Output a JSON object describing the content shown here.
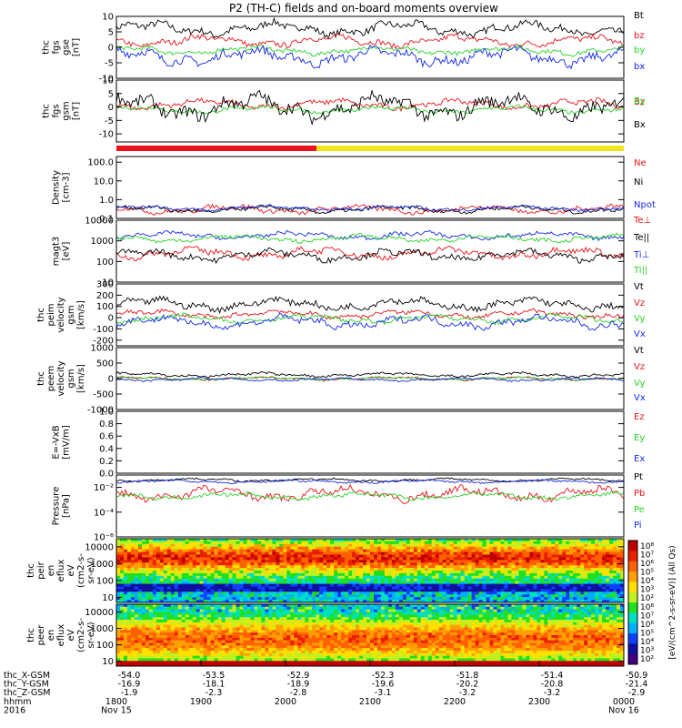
{
  "title": "P2 (TH-C) fields and on-board moments overview",
  "colors": {
    "black": "#000000",
    "red": "#e8141a",
    "green": "#28d228",
    "blue": "#1428e6",
    "orange_bar": "#f0e61e"
  },
  "chart_data": [
    {
      "type": "line",
      "id": "fgs_gse",
      "ylabel": [
        "thc",
        "fgs",
        "gse",
        "[nT]"
      ],
      "ylim": [
        -10,
        10
      ],
      "ticks": [
        {
          "v": 10,
          "l": "10"
        },
        {
          "v": 5,
          "l": "5"
        },
        {
          "v": 0,
          "l": "0"
        },
        {
          "v": -5,
          "l": "-5"
        },
        {
          "v": -10,
          "l": "-10"
        }
      ],
      "log": false,
      "series": [
        {
          "name": "Bt",
          "color": "#000000",
          "base": 6,
          "amp": 2.5
        },
        {
          "name": "bz",
          "color": "#e8141a",
          "base": 2,
          "amp": 2
        },
        {
          "name": "by",
          "color": "#28d228",
          "base": -1,
          "amp": 1.5
        },
        {
          "name": "bx",
          "color": "#1428e6",
          "base": -3,
          "amp": 3
        }
      ]
    },
    {
      "type": "line",
      "id": "fgs_gsm",
      "ylabel": [
        "thc",
        "fgs",
        "gsm",
        "[nT]"
      ],
      "ylim": [
        -13,
        10
      ],
      "ticks": [
        {
          "v": 10,
          "l": "10"
        },
        {
          "v": 5,
          "l": "5"
        },
        {
          "v": 0,
          "l": "0"
        },
        {
          "v": -5,
          "l": "-5"
        },
        {
          "v": -10,
          "l": "-10"
        }
      ],
      "log": false,
      "series": [
        {
          "name": "Bz",
          "color": "#e8141a",
          "base": 1,
          "amp": 2
        },
        {
          "name": "By",
          "color": "#28d228",
          "base": -1,
          "amp": 1.5
        },
        {
          "name": "Bx",
          "color": "#000000",
          "base": 0,
          "amp": 5
        }
      ]
    },
    {
      "type": "line",
      "id": "density",
      "ylabel": [
        "Density",
        "[cm-3]"
      ],
      "ylim": [
        0.1,
        200
      ],
      "log": true,
      "ticks": [
        {
          "v": 100,
          "l": "100.0"
        },
        {
          "v": 10,
          "l": "10.0"
        },
        {
          "v": 1,
          "l": "1.0"
        },
        {
          "v": 0.1,
          "l": "0.1"
        }
      ],
      "series": [
        {
          "name": "Ne",
          "color": "#e8141a",
          "base": 0.3,
          "amp": 0.25
        },
        {
          "name": "Ni",
          "color": "#000000",
          "base": 0.3,
          "amp": 0.2
        },
        {
          "name": "Npot",
          "color": "#1428e6",
          "base": 0.35,
          "amp": 0.15
        }
      ]
    },
    {
      "type": "line",
      "id": "temperature",
      "ylabel": [
        "magt3",
        "[eV]"
      ],
      "ylim": [
        10,
        10000
      ],
      "log": true,
      "ticks": [
        {
          "v": 10000,
          "l": "10000"
        },
        {
          "v": 1000,
          "l": "1000"
        },
        {
          "v": 100,
          "l": "100"
        },
        {
          "v": 10,
          "l": "10"
        }
      ],
      "series": [
        {
          "name": "Te⊥",
          "color": "#e8141a",
          "base": 250,
          "amp": 0.3
        },
        {
          "name": "Te||",
          "color": "#000000",
          "base": 200,
          "amp": 0.3
        },
        {
          "name": "Ti⊥",
          "color": "#1428e6",
          "base": 1800,
          "amp": 0.2
        },
        {
          "name": "Ti||",
          "color": "#28d228",
          "base": 1300,
          "amp": 0.2
        }
      ]
    },
    {
      "type": "line",
      "id": "peim_velocity",
      "ylabel": [
        "thc",
        "peim",
        "velocity",
        "gsm",
        "[km/s]"
      ],
      "ylim": [
        -250,
        300
      ],
      "log": false,
      "ticks": [
        {
          "v": 300,
          "l": "300"
        },
        {
          "v": 200,
          "l": "200"
        },
        {
          "v": 100,
          "l": "100"
        },
        {
          "v": 0,
          "l": "0"
        },
        {
          "v": -100,
          "l": "-100"
        },
        {
          "v": -200,
          "l": "-200"
        }
      ],
      "series": [
        {
          "name": "Vt",
          "color": "#000000",
          "base": 120,
          "amp": 60
        },
        {
          "name": "Vz",
          "color": "#e8141a",
          "base": 30,
          "amp": 40
        },
        {
          "name": "Vy",
          "color": "#28d228",
          "base": -10,
          "amp": 40
        },
        {
          "name": "Vx",
          "color": "#1428e6",
          "base": -40,
          "amp": 60
        }
      ]
    },
    {
      "type": "line",
      "id": "peem_velocity",
      "ylabel": [
        "thc",
        "peem",
        "velocity",
        "gsm",
        "[km/s]"
      ],
      "ylim": [
        -1000,
        1000
      ],
      "log": false,
      "ticks": [
        {
          "v": 1000,
          "l": "1000"
        },
        {
          "v": 500,
          "l": "500"
        },
        {
          "v": 0,
          "l": "0"
        },
        {
          "v": -500,
          "l": "-500"
        },
        {
          "v": -1000,
          "l": "-1000"
        }
      ],
      "series": [
        {
          "name": "Vt",
          "color": "#000000",
          "base": 120,
          "amp": 80
        },
        {
          "name": "Vz",
          "color": "#e8141a",
          "base": 0,
          "amp": 60
        },
        {
          "name": "Vy",
          "color": "#28d228",
          "base": 0,
          "amp": 50
        },
        {
          "name": "Vx",
          "color": "#1428e6",
          "base": -30,
          "amp": 60
        }
      ]
    },
    {
      "type": "line",
      "id": "efield",
      "ylabel": [
        "E=-VxB",
        "[mV/m]"
      ],
      "ylim": [
        0,
        1
      ],
      "log": false,
      "ticks": [
        {
          "v": 1.0,
          "l": "1.0"
        },
        {
          "v": 0.8,
          "l": "0.8"
        },
        {
          "v": 0.6,
          "l": "0.6"
        },
        {
          "v": 0.4,
          "l": "0.4"
        },
        {
          "v": 0.2,
          "l": "0.2"
        },
        {
          "v": 0.0,
          "l": "0.0"
        }
      ],
      "series": [
        {
          "name": "Ez",
          "color": "#e8141a",
          "base": null,
          "amp": 0
        },
        {
          "name": "Ey",
          "color": "#28d228",
          "base": null,
          "amp": 0
        },
        {
          "name": "Ex",
          "color": "#1428e6",
          "base": null,
          "amp": 0
        }
      ]
    },
    {
      "type": "line",
      "id": "pressure",
      "ylabel": [
        "Pressure",
        "[nPa]"
      ],
      "ylim": [
        1e-06,
        0.1
      ],
      "log": true,
      "ticks": [
        {
          "v": 0.01,
          "l": "10⁻²"
        },
        {
          "v": 0.0001,
          "l": "10⁻⁴"
        },
        {
          "v": 1e-06,
          "l": "10⁻⁶"
        }
      ],
      "series": [
        {
          "name": "Pt",
          "color": "#000000",
          "base": 0.04,
          "amp": 0.15
        },
        {
          "name": "Pb",
          "color": "#e8141a",
          "base": 0.003,
          "amp": 0.6
        },
        {
          "name": "Pe",
          "color": "#28d228",
          "base": 0.002,
          "amp": 0.3
        },
        {
          "name": "Pi",
          "color": "#1428e6",
          "base": 0.03,
          "amp": 0.15
        }
      ]
    },
    {
      "type": "heatmap",
      "id": "peir_eflux",
      "ylabel": [
        "thc",
        "peir",
        "en",
        "eflux",
        "eV",
        "(cm2-s-",
        "sr-eV)"
      ],
      "ylim": [
        5,
        30000
      ],
      "log": true,
      "ticks": [
        {
          "v": 10000,
          "l": "10000"
        },
        {
          "v": 1000,
          "l": "1000"
        },
        {
          "v": 100,
          "l": "100"
        },
        {
          "v": 10,
          "l": "10"
        }
      ]
    },
    {
      "type": "heatmap",
      "id": "peer_eflux",
      "ylabel": [
        "thc",
        "peer",
        "en",
        "eflux",
        "eV",
        "(cm2-s-",
        "sr-eV)"
      ],
      "ylim": [
        5,
        30000
      ],
      "log": true,
      "ticks": [
        {
          "v": 10000,
          "l": "10000"
        },
        {
          "v": 1000,
          "l": "1000"
        },
        {
          "v": 100,
          "l": "100"
        },
        {
          "v": 10,
          "l": "10"
        }
      ]
    }
  ],
  "colorbar": {
    "label": "[eV/(cm^2-s-sr-eV)] (All Qs)",
    "ticks": [
      "10⁸",
      "10⁷",
      "10⁶",
      "10⁵",
      "10⁴",
      "10³",
      "10²"
    ],
    "ticks2": [
      "10⁸",
      "10⁷",
      "10⁶",
      "10⁵",
      "10⁴",
      "10³",
      "10²"
    ]
  },
  "xaxis": {
    "rows": [
      {
        "label": "thc_X-GSM",
        "values": [
          "-54.0",
          "-53.5",
          "-52.9",
          "-52.3",
          "-51.8",
          "-51.4",
          "-50.9"
        ]
      },
      {
        "label": "thc_Y-GSM",
        "values": [
          "-16.9",
          "-18.1",
          "-18.9",
          "-19.6",
          "-20.2",
          "-20.8",
          "-21.4"
        ]
      },
      {
        "label": "thc_Z-GSM",
        "values": [
          "-1.9",
          "-2.3",
          "-2.8",
          "-3.1",
          "-3.2",
          "-3.2",
          "-2.9"
        ]
      },
      {
        "label": "hhmm",
        "values": [
          "1800",
          "1900",
          "2000",
          "2100",
          "2200",
          "2300",
          "0000"
        ]
      },
      {
        "label": "2016",
        "values": [
          "Nov 15",
          "",
          "",
          "",
          "",
          "",
          "Nov 16"
        ]
      }
    ]
  }
}
